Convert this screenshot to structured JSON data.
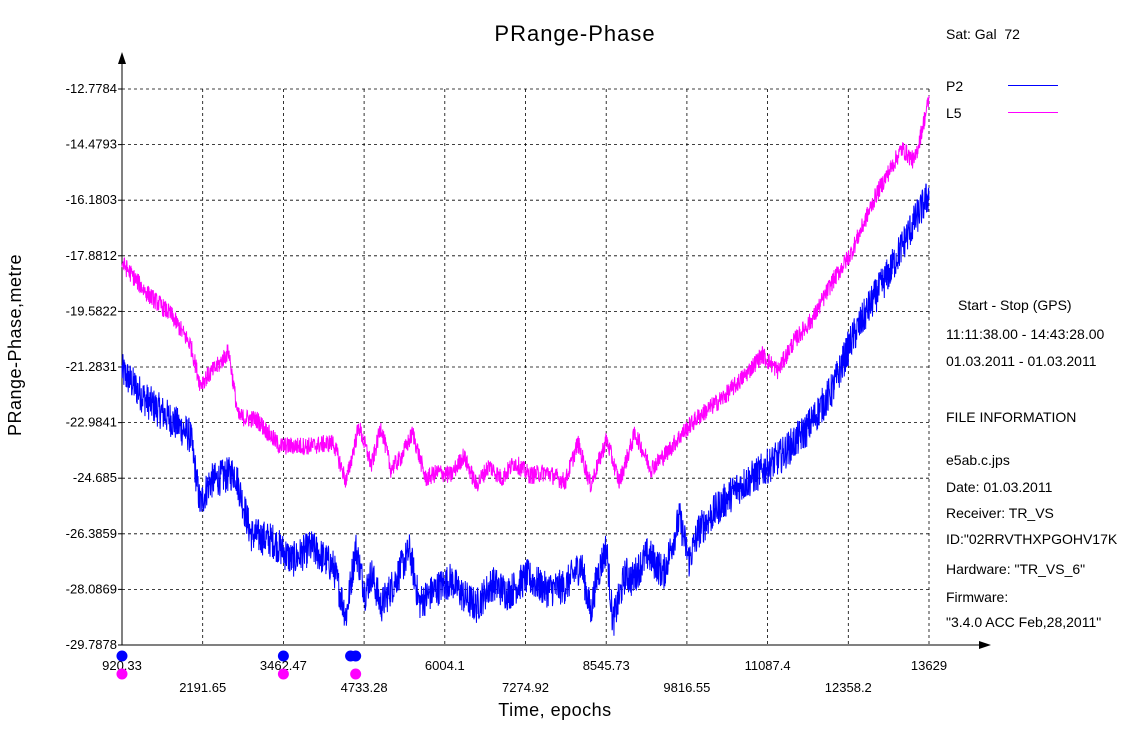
{
  "chart_data": {
    "type": "line",
    "title": "PRange-Phase",
    "xlabel": "Time, epochs",
    "ylabel": "PRange-Phase,metre",
    "xlim": [
      920.33,
      13629
    ],
    "ylim": [
      -29.7878,
      -12.7784
    ],
    "x_ticks": [
      "920.33",
      "2191.65",
      "3462.47",
      "4733.28",
      "6004.1",
      "7274.92",
      "8545.73",
      "9816.55",
      "11087.4",
      "12358.2",
      "13629"
    ],
    "y_ticks": [
      "-12.7784",
      "-14.4793",
      "-16.1803",
      "-17.8812",
      "-19.5822",
      "-21.2831",
      "-22.9841",
      "-24.685",
      "-26.3859",
      "-28.0869",
      "-29.7878"
    ],
    "grid": true,
    "legend": "right",
    "series": [
      {
        "name": "P2",
        "color": "#0000ff",
        "x": [
          920,
          1300,
          1700,
          2000,
          2150,
          2300,
          2700,
          2950,
          3300,
          3600,
          3900,
          4250,
          4450,
          4600,
          4750,
          4850,
          5000,
          5200,
          5450,
          5600,
          5850,
          6100,
          6300,
          6500,
          6750,
          7000,
          7300,
          7600,
          7900,
          8150,
          8300,
          8400,
          8550,
          8650,
          8850,
          8950,
          9200,
          9450,
          9700,
          9850,
          10000,
          10300,
          10600,
          10900,
          11300,
          11700,
          12100,
          12400,
          12700,
          13000,
          13300,
          13629
        ],
        "values": [
          -21.4,
          -22.3,
          -22.9,
          -23.4,
          -25.5,
          -24.8,
          -24.5,
          -26.4,
          -26.6,
          -27.2,
          -26.8,
          -27.4,
          -28.9,
          -26.8,
          -28.2,
          -27.6,
          -28.6,
          -27.9,
          -26.9,
          -28.5,
          -28.1,
          -27.8,
          -28.3,
          -28.6,
          -27.9,
          -28.2,
          -27.7,
          -28.1,
          -28.0,
          -27.3,
          -28.8,
          -27.7,
          -26.8,
          -29.1,
          -27.6,
          -27.8,
          -27.0,
          -27.6,
          -25.9,
          -27.2,
          -26.3,
          -25.6,
          -25.0,
          -24.6,
          -24.0,
          -23.2,
          -22.0,
          -20.5,
          -19.4,
          -18.4,
          -17.2,
          -16.0
        ]
      },
      {
        "name": "L5",
        "color": "#ff00ff",
        "x": [
          920,
          1300,
          1700,
          2000,
          2150,
          2450,
          2600,
          2750,
          3050,
          3400,
          3900,
          4250,
          4450,
          4650,
          4850,
          5000,
          5150,
          5300,
          5500,
          5700,
          5900,
          6100,
          6300,
          6500,
          6700,
          6900,
          7100,
          7350,
          7600,
          7900,
          8100,
          8300,
          8550,
          8750,
          9000,
          9250,
          9500,
          9750,
          10000,
          10400,
          10750,
          11000,
          11250,
          11500,
          11800,
          12100,
          12400,
          12800,
          13200,
          13400,
          13629
        ],
        "values": [
          -18.1,
          -19.0,
          -19.7,
          -20.6,
          -21.8,
          -21.2,
          -20.8,
          -22.8,
          -22.9,
          -23.7,
          -23.7,
          -23.6,
          -24.8,
          -23.1,
          -24.3,
          -23.1,
          -24.4,
          -24.1,
          -23.3,
          -24.7,
          -24.5,
          -24.6,
          -24.0,
          -24.9,
          -24.3,
          -24.7,
          -24.2,
          -24.6,
          -24.5,
          -24.8,
          -23.6,
          -24.9,
          -23.5,
          -24.8,
          -23.3,
          -24.4,
          -23.9,
          -23.3,
          -22.8,
          -22.2,
          -21.5,
          -20.9,
          -21.4,
          -20.5,
          -19.8,
          -18.7,
          -17.8,
          -16.0,
          -14.6,
          -15.0,
          -13.1
        ]
      }
    ],
    "markers": {
      "blue": [
        920,
        3462,
        4520,
        4600
      ],
      "magenta": [
        920,
        3462,
        4600
      ]
    }
  },
  "legend_panel": {
    "sat_label": "Sat: Gal",
    "sat_number": "72",
    "start_stop_label": "Start  -  Stop  (GPS)",
    "time_range": "11:11:38.00 - 14:43:28.00",
    "date_range": "01.03.2011 - 01.03.2011",
    "file_info_title": "FILE INFORMATION",
    "file_name": "e5ab.c.jps",
    "date": "Date: 01.03.2011",
    "receiver": "Receiver: TR_VS",
    "id": "ID:\"02RRVTHXPGOHV17K",
    "hardware": "Hardware: \"TR_VS_6\"",
    "firmware_label": "Firmware:",
    "firmware_value": "\"3.4.0 ACC Feb,28,2011\""
  }
}
